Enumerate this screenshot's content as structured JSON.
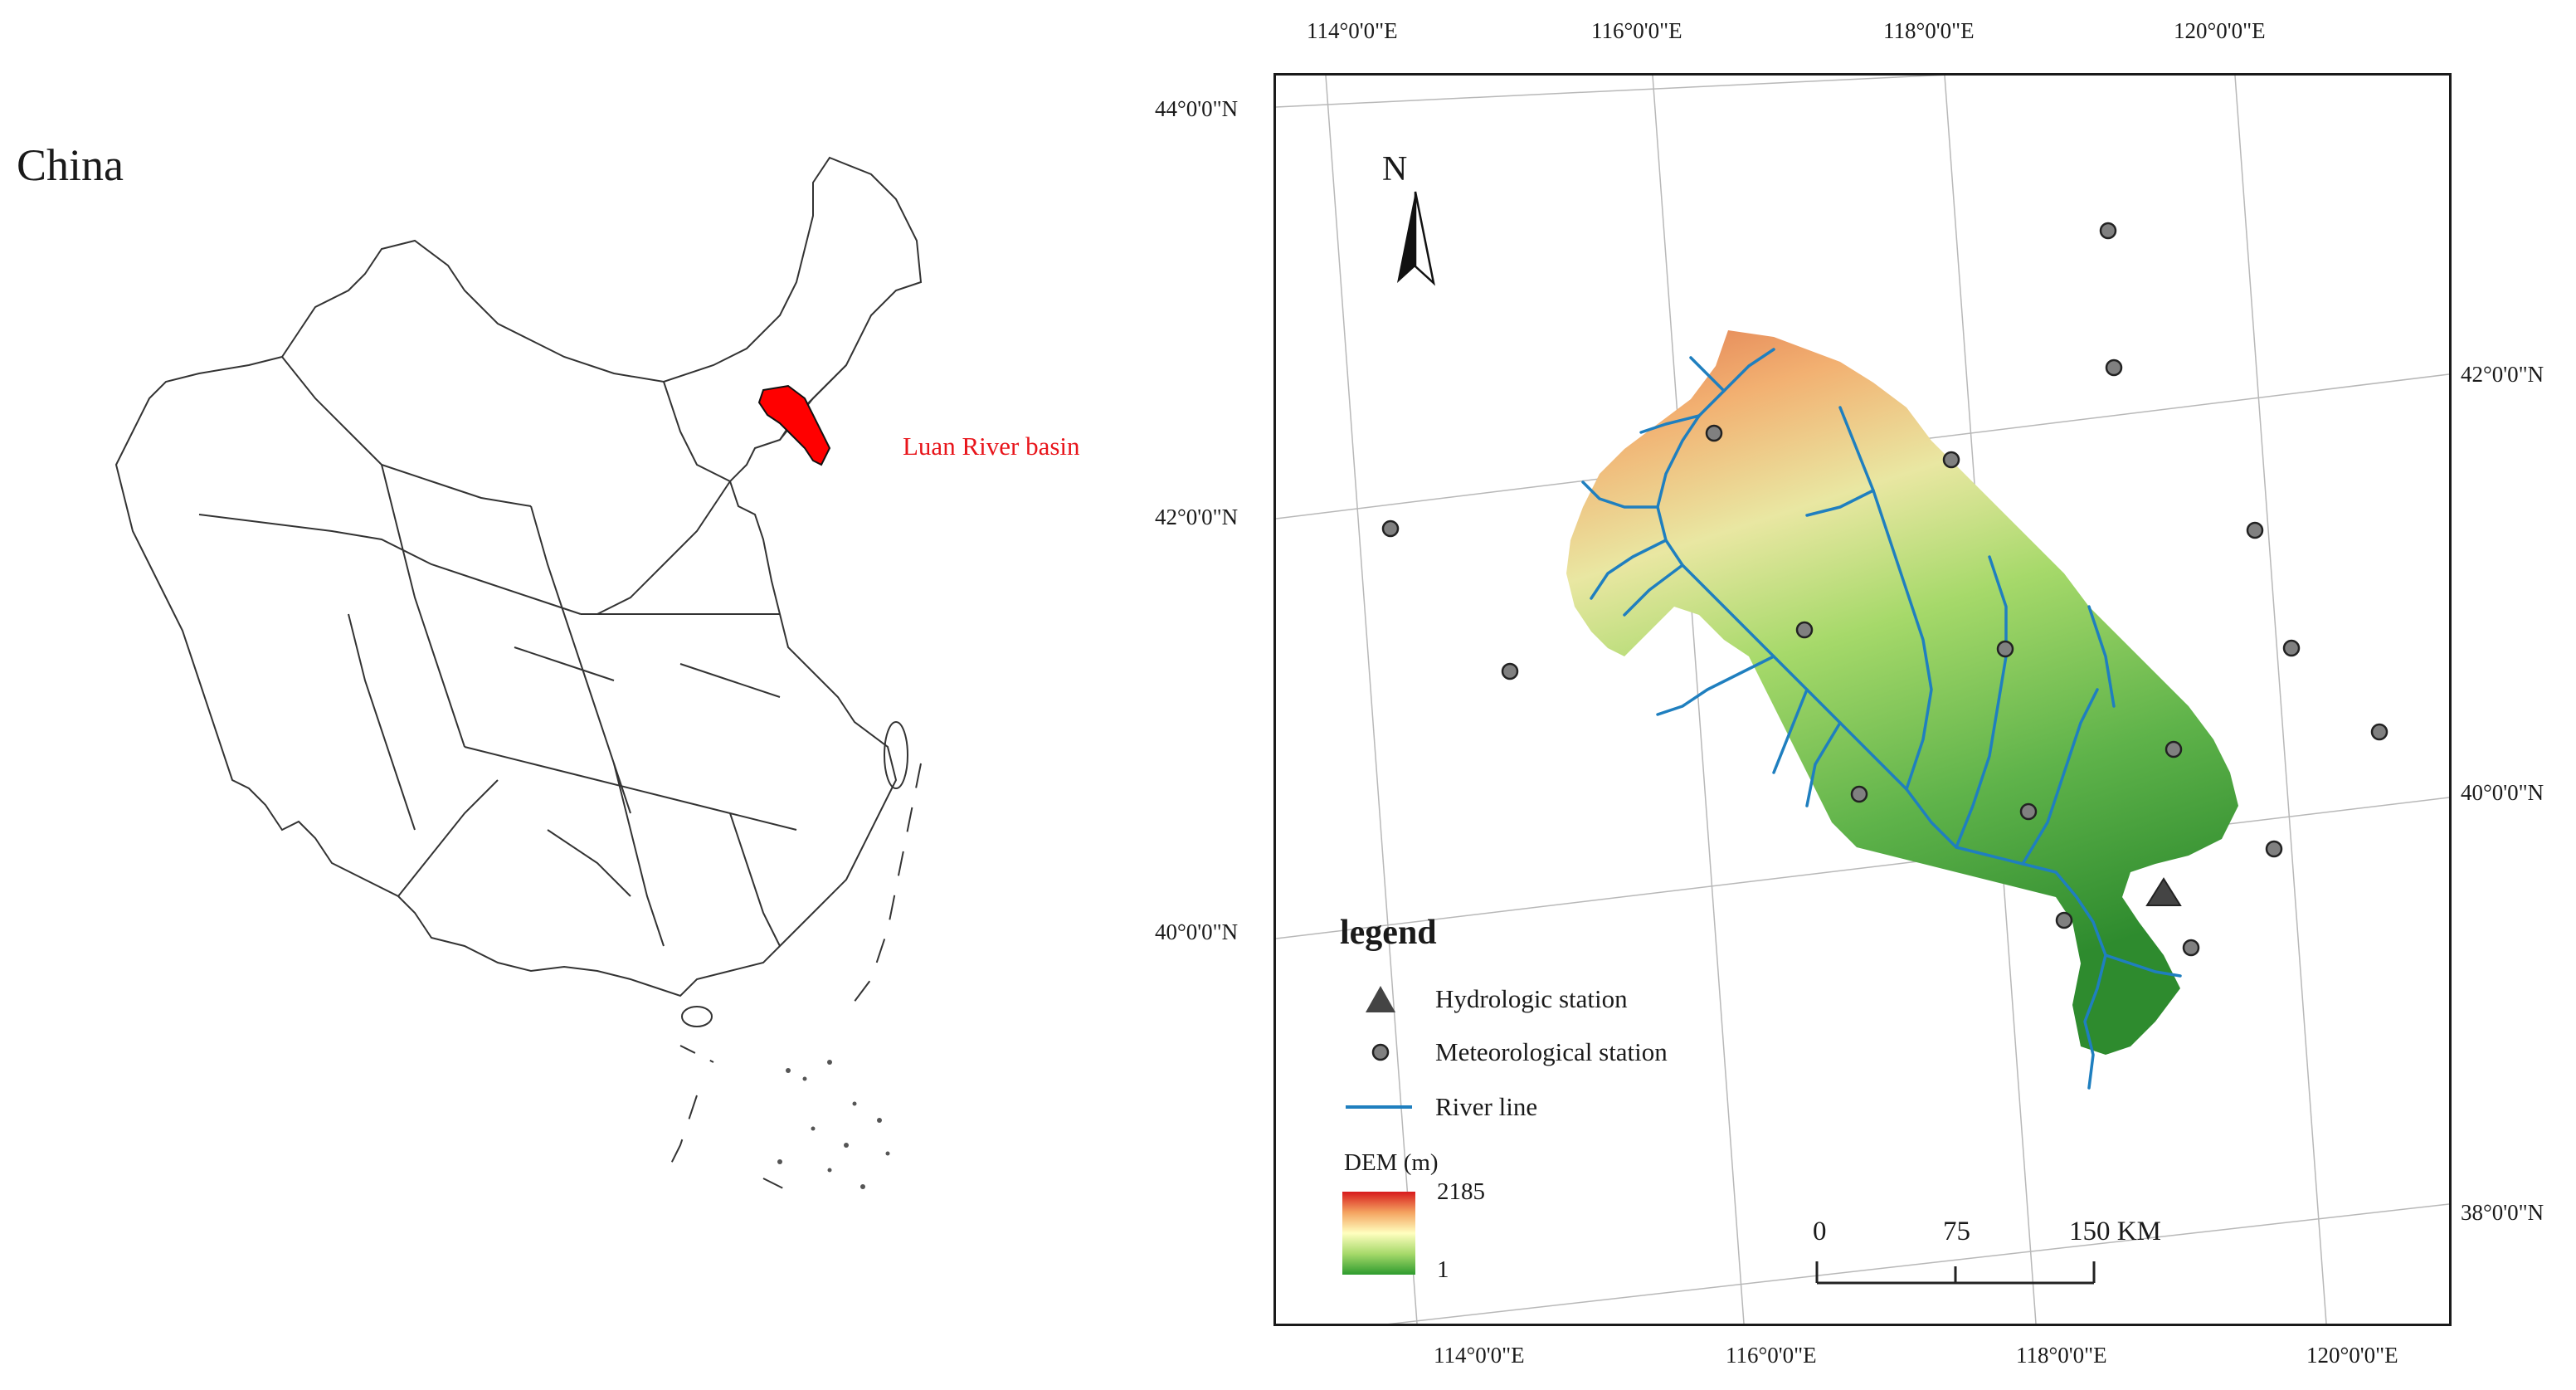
{
  "inset_map": {
    "title": "China",
    "highlight_label": "Luan River basin",
    "highlight_color": "#ff0000"
  },
  "main_map": {
    "north_label": "N",
    "top_lon_ticks": [
      "114°0'0\"E",
      "116°0'0\"E",
      "118°0'0\"E",
      "120°0'0\"E"
    ],
    "bottom_lon_ticks": [
      "114°0'0\"E",
      "116°0'0\"E",
      "118°0'0\"E",
      "120°0'0\"E"
    ],
    "left_lat_ticks": [
      "44°0'0\"N",
      "42°0'0\"N",
      "40°0'0\"N"
    ],
    "right_lat_ticks": [
      "42°0'0\"N",
      "40°0'0\"N",
      "38°0'0\"N"
    ],
    "legend": {
      "title": "legend",
      "items": [
        {
          "symbol": "triangle",
          "label": "Hydrologic station"
        },
        {
          "symbol": "circle",
          "label": "Meteorological station"
        },
        {
          "symbol": "line",
          "label": "River line"
        }
      ]
    },
    "dem": {
      "title": "DEM (m)",
      "max": "2185",
      "min": "1",
      "colors": [
        "#d7191c",
        "#f4a360",
        "#ffffbf",
        "#a6d96a",
        "#2e9b2e"
      ]
    },
    "scale_bar": {
      "labels": [
        "0",
        "75",
        "150 KM"
      ]
    },
    "colors": {
      "river": "#1f7fbf",
      "station_fill": "#808080",
      "hydro_station": "#444444"
    }
  }
}
